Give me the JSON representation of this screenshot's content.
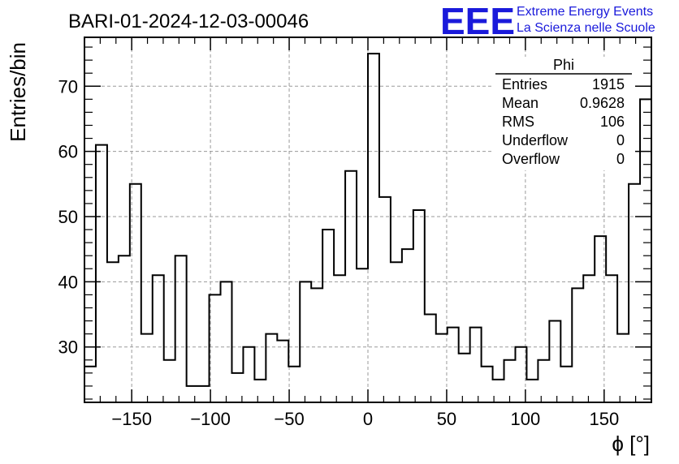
{
  "header": {
    "title": "BARI-01-2024-12-03-00046",
    "logo_text": "EEE",
    "brand_line1": "Extreme Energy Events",
    "brand_line2": "La Scienza nelle Scuole"
  },
  "stats_box": {
    "title": "Phi",
    "rows": [
      {
        "label": "Entries",
        "value": "1915"
      },
      {
        "label": "Mean",
        "value": "0.9628"
      },
      {
        "label": "RMS",
        "value": "106"
      },
      {
        "label": "Underflow",
        "value": "0"
      },
      {
        "label": "Overflow",
        "value": "0"
      }
    ]
  },
  "colors": {
    "brand": "#1a1adb",
    "line": "#000000",
    "grid": "#9a9a9a"
  },
  "chart_data": {
    "type": "bar",
    "histogram": true,
    "xlabel": "ϕ [°]",
    "ylabel": "Entries/bin",
    "xlim": [
      -180,
      180
    ],
    "ylim": [
      21.5,
      77.5
    ],
    "bin_width": 7.2,
    "x_ticks": [
      -150,
      -100,
      -50,
      0,
      50,
      100,
      150
    ],
    "x_tick_labels": [
      "−150",
      "−100",
      "−50",
      "0",
      "50",
      "100",
      "150"
    ],
    "y_ticks": [
      30,
      40,
      50,
      60,
      70
    ],
    "y_tick_labels": [
      "30",
      "40",
      "50",
      "60",
      "70"
    ],
    "grid": true,
    "legend": "top-right stats box",
    "values": [
      27,
      61,
      43,
      44,
      55,
      32,
      41,
      28,
      44,
      24,
      24,
      38,
      40,
      26,
      30,
      25,
      32,
      31,
      27,
      40,
      39,
      48,
      41,
      57,
      42,
      75,
      53,
      43,
      45,
      51,
      35,
      32,
      33,
      29,
      33,
      27,
      25,
      28,
      30,
      25,
      28,
      34,
      27,
      39,
      41,
      47,
      41,
      32,
      55,
      68
    ]
  }
}
